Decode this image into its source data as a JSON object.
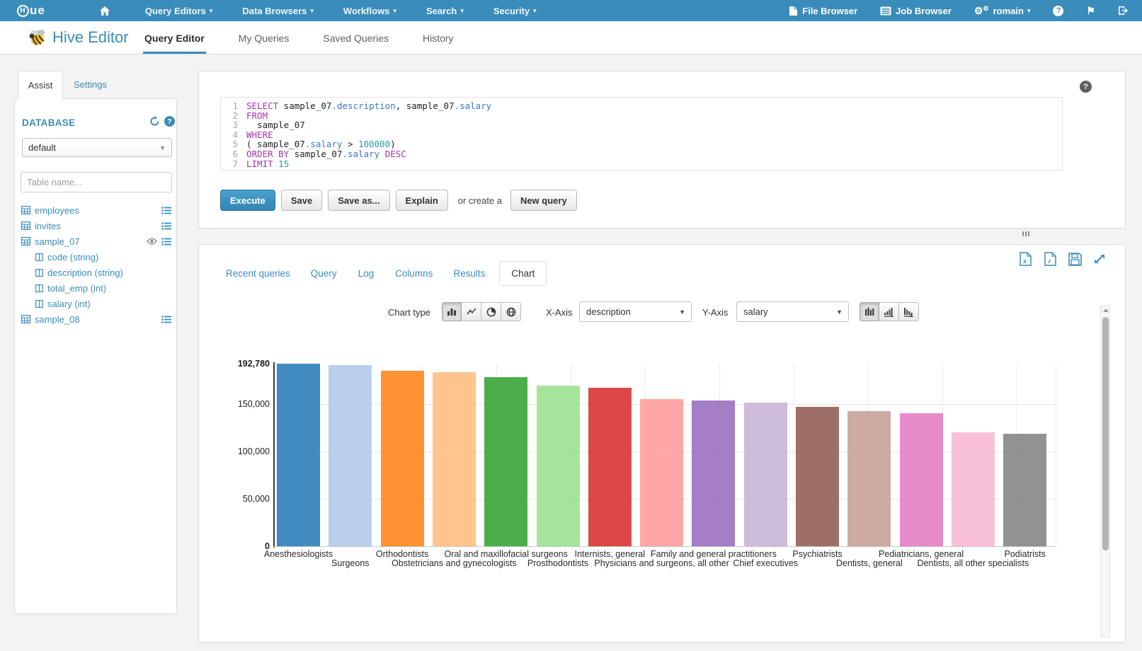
{
  "topnav": {
    "logo_circle": "H",
    "logo_rest": "ue",
    "menus": [
      {
        "label": "Query Editors"
      },
      {
        "label": "Data Browsers"
      },
      {
        "label": "Workflows"
      },
      {
        "label": "Search"
      },
      {
        "label": "Security"
      }
    ],
    "file_browser": "File Browser",
    "job_browser": "Job Browser",
    "user": "romain",
    "help": "?"
  },
  "header": {
    "app_title": "Hive Editor",
    "tabs": [
      {
        "label": "Query Editor",
        "active": true
      },
      {
        "label": "My Queries",
        "active": false
      },
      {
        "label": "Saved Queries",
        "active": false
      },
      {
        "label": "History",
        "active": false
      }
    ]
  },
  "assist": {
    "tab_assist": "Assist",
    "tab_settings": "Settings",
    "database_label": "DATABASE",
    "database_value": "default",
    "filter_placeholder": "Table name...",
    "tables": [
      {
        "name": "employees",
        "eye": false,
        "columns": []
      },
      {
        "name": "invites",
        "eye": false,
        "columns": []
      },
      {
        "name": "sample_07",
        "eye": true,
        "columns": [
          {
            "name": "code",
            "type": "string"
          },
          {
            "name": "description",
            "type": "string"
          },
          {
            "name": "total_emp",
            "type": "int"
          },
          {
            "name": "salary",
            "type": "int"
          }
        ]
      },
      {
        "name": "sample_08",
        "eye": false,
        "columns": []
      }
    ]
  },
  "editor": {
    "code_lines": [
      {
        "num": "1",
        "tokens": [
          [
            "kw",
            "SELECT"
          ],
          [
            "pl",
            " sample_07"
          ],
          [
            "at",
            ".description"
          ],
          [
            "pl",
            ", sample_07"
          ],
          [
            "at",
            ".salary"
          ]
        ]
      },
      {
        "num": "2",
        "tokens": [
          [
            "kw",
            "FROM"
          ]
        ]
      },
      {
        "num": "3",
        "tokens": [
          [
            "pl",
            "  sample_07"
          ]
        ]
      },
      {
        "num": "4",
        "tokens": [
          [
            "kw",
            "WHERE"
          ]
        ]
      },
      {
        "num": "5",
        "tokens": [
          [
            "pl",
            "( sample_07"
          ],
          [
            "at",
            ".salary"
          ],
          [
            "pl",
            " > "
          ],
          [
            "nu",
            "100000"
          ],
          [
            "pl",
            ")"
          ]
        ]
      },
      {
        "num": "6",
        "tokens": [
          [
            "kw",
            "ORDER BY"
          ],
          [
            "pl",
            " sample_07"
          ],
          [
            "at",
            ".salary"
          ],
          [
            "kw",
            " DESC"
          ]
        ]
      },
      {
        "num": "7",
        "tokens": [
          [
            "kw",
            "LIMIT"
          ],
          [
            "nu",
            " 15"
          ]
        ]
      }
    ],
    "buttons": {
      "execute": "Execute",
      "save": "Save",
      "save_as": "Save as...",
      "explain": "Explain",
      "or_create": "or create a",
      "new_query": "New query"
    },
    "help": "?"
  },
  "results": {
    "tabs": [
      {
        "label": "Recent queries",
        "active": false
      },
      {
        "label": "Query",
        "active": false
      },
      {
        "label": "Log",
        "active": false
      },
      {
        "label": "Columns",
        "active": false
      },
      {
        "label": "Results",
        "active": false
      },
      {
        "label": "Chart",
        "active": true
      }
    ],
    "controls": {
      "chart_type_label": "Chart type",
      "x_axis_label": "X-Axis",
      "x_axis_value": "description",
      "y_axis_label": "Y-Axis",
      "y_axis_value": "salary"
    }
  },
  "chart_data": {
    "type": "bar",
    "title": "",
    "xlabel": "description",
    "ylabel": "salary",
    "categories": [
      "Anesthesiologists",
      "Surgeons",
      "Orthodontists",
      "Obstetricians and gynecologists",
      "Oral and maxillofacial surgeons",
      "Prosthodontists",
      "Internists, general",
      "Physicians and surgeons, all other",
      "Family and general practitioners",
      "Chief executives",
      "Psychiatrists",
      "Dentists, general",
      "Pediatricians, general",
      "Dentists, all other specialists",
      "Podiatrists"
    ],
    "values": [
      192780,
      191410,
      185340,
      183600,
      178440,
      169810,
      167270,
      155150,
      153640,
      151370,
      146880,
      142870,
      140690,
      120360,
      118500
    ],
    "ylim": [
      0,
      192780
    ],
    "yticks": [
      0,
      50000,
      100000,
      150000,
      192780
    ],
    "grid": "on",
    "legend": "off",
    "colors": [
      "#1f77b4",
      "#aec7e8",
      "#ff7f0e",
      "#ffbb78",
      "#2ca02c",
      "#98df8a",
      "#d62728",
      "#ff9896",
      "#9467bd",
      "#c5b0d5",
      "#8c564b",
      "#c49c94",
      "#e377c2",
      "#f7b6d2",
      "#7f7f7f"
    ]
  }
}
